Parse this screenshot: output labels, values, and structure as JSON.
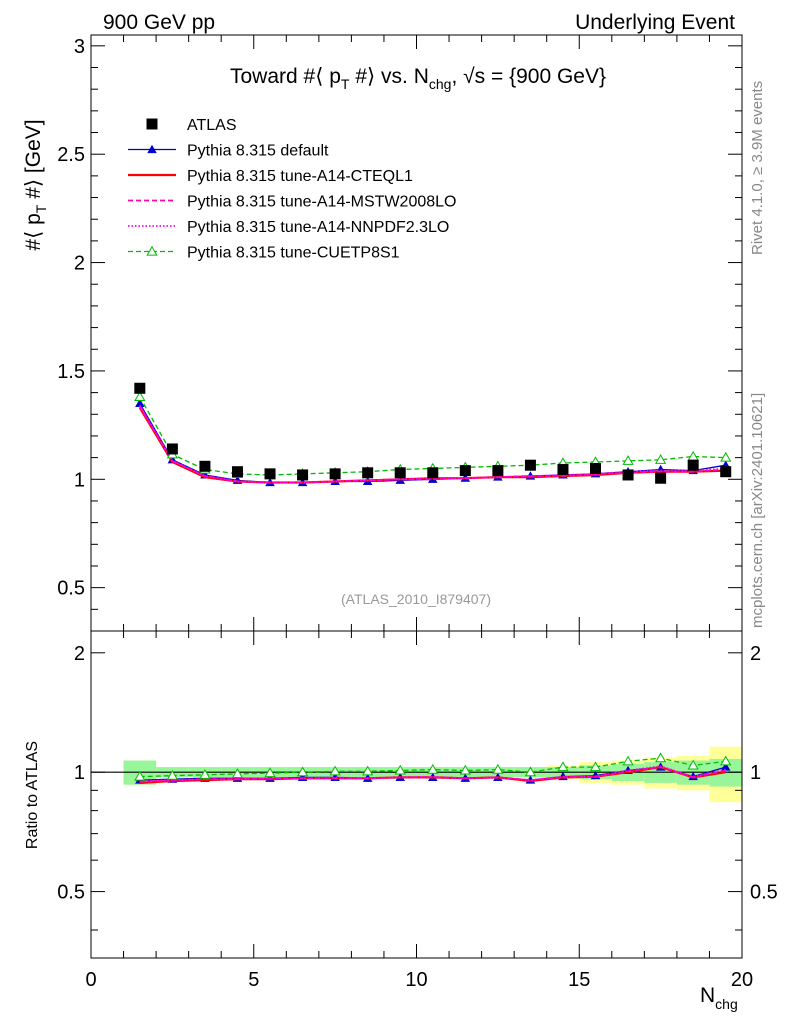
{
  "header": {
    "left_label": "900 GeV pp",
    "right_label": "Underlying Event"
  },
  "side_labels": {
    "rivet": "Rivet 4.1.0, ≥ 3.9M events",
    "mcplots": "mcplots.cern.ch [arXiv:2401.10621]"
  },
  "colors": {
    "data": "#000000",
    "default": "#0000cc",
    "cteql1": "#ff0000",
    "mstw": "#ff00aa",
    "nnpdf": "#ff00ff",
    "cuetp8s1": "#00bb00",
    "band_inner": "#99f599",
    "band_outer": "#ffff99"
  },
  "chart_data": [
    {
      "type": "line",
      "title": "Toward #⟨ p_T #⟩ vs. N_chg, √s = {900 GeV}",
      "xlabel": "N_chg",
      "ylabel": "#⟨ p_T #⟩ [GeV]",
      "watermark": "(ATLAS_2010_I879407)",
      "xlim": [
        0,
        20
      ],
      "ylim": [
        0.3,
        3.05
      ],
      "yticks": [
        0.5,
        1,
        1.5,
        2,
        2.5,
        3
      ],
      "ytick_labels": [
        "0.5",
        "1",
        "1.5",
        "2",
        "2.5",
        "3"
      ],
      "x": [
        1.5,
        2.5,
        3.5,
        4.5,
        5.5,
        6.5,
        7.5,
        8.5,
        9.5,
        10.5,
        11.5,
        12.5,
        13.5,
        14.5,
        15.5,
        16.5,
        17.5,
        18.5,
        19.5
      ],
      "series": [
        {
          "key": "atlas",
          "name": "ATLAS",
          "style": "data",
          "values": [
            1.42,
            1.14,
            1.06,
            1.035,
            1.025,
            1.02,
            1.025,
            1.03,
            1.03,
            1.03,
            1.04,
            1.04,
            1.065,
            1.045,
            1.05,
            1.02,
            1.005,
            1.065,
            1.035
          ]
        },
        {
          "key": "default",
          "name": "Pythia 8.315 default",
          "style": "default",
          "values": [
            1.35,
            1.09,
            1.02,
            0.995,
            0.985,
            0.985,
            0.99,
            0.99,
            0.995,
            1.0,
            1.005,
            1.01,
            1.015,
            1.02,
            1.025,
            1.035,
            1.045,
            1.04,
            1.065
          ]
        },
        {
          "key": "cteql1",
          "name": "Pythia 8.315 tune-A14-CTEQL1",
          "style": "cteql1",
          "values": [
            1.33,
            1.08,
            1.01,
            0.99,
            0.985,
            0.985,
            0.99,
            0.995,
            1.0,
            1.005,
            1.005,
            1.01,
            1.01,
            1.015,
            1.02,
            1.03,
            1.035,
            1.035,
            1.04
          ]
        },
        {
          "key": "mstw",
          "name": "Pythia 8.315 tune-A14-MSTW2008LO",
          "style": "mstw",
          "values": [
            1.335,
            1.085,
            1.015,
            0.99,
            0.985,
            0.985,
            0.99,
            0.995,
            1.0,
            1.0,
            1.005,
            1.01,
            1.015,
            1.015,
            1.025,
            1.03,
            1.035,
            1.035,
            1.045
          ]
        },
        {
          "key": "nnpdf",
          "name": "Pythia 8.315 tune-A14-NNPDF2.3LO",
          "style": "nnpdf",
          "values": [
            1.34,
            1.085,
            1.015,
            0.99,
            0.985,
            0.985,
            0.99,
            0.995,
            1.0,
            1.005,
            1.005,
            1.01,
            1.015,
            1.02,
            1.025,
            1.035,
            1.04,
            1.04,
            1.05
          ]
        },
        {
          "key": "cuetp8s1",
          "name": "Pythia 8.315 tune-CUETP8S1",
          "style": "cuetp8s1",
          "values": [
            1.38,
            1.115,
            1.045,
            1.025,
            1.02,
            1.025,
            1.03,
            1.035,
            1.045,
            1.05,
            1.055,
            1.06,
            1.065,
            1.075,
            1.08,
            1.085,
            1.09,
            1.105,
            1.1
          ]
        }
      ]
    },
    {
      "type": "line",
      "title": "",
      "xlabel": "N_chg",
      "ylabel": "Ratio to ATLAS",
      "xlim": [
        0,
        20
      ],
      "ylim": [
        0.34,
        2.27
      ],
      "xticks": [
        0,
        5,
        10,
        15,
        20
      ],
      "xtick_labels": [
        "0",
        "5",
        "10",
        "15",
        "20"
      ],
      "yticks": [
        0.5,
        1,
        2
      ],
      "ytick_labels": [
        "0.5",
        "1",
        "2"
      ],
      "reference_line": 1,
      "x": [
        1.5,
        2.5,
        3.5,
        4.5,
        5.5,
        6.5,
        7.5,
        8.5,
        9.5,
        10.5,
        11.5,
        12.5,
        13.5,
        14.5,
        15.5,
        16.5,
        17.5,
        18.5,
        19.5
      ],
      "band_bins": [
        [
          1,
          2
        ],
        [
          2,
          3
        ],
        [
          3,
          4
        ],
        [
          4,
          5
        ],
        [
          5,
          6
        ],
        [
          6,
          7
        ],
        [
          7,
          8
        ],
        [
          8,
          9
        ],
        [
          9,
          10
        ],
        [
          10,
          11
        ],
        [
          11,
          12
        ],
        [
          12,
          13
        ],
        [
          13,
          14
        ],
        [
          14,
          15
        ],
        [
          15,
          16
        ],
        [
          16,
          17
        ],
        [
          17,
          18
        ],
        [
          18,
          19
        ],
        [
          19,
          20
        ]
      ],
      "band_inner_halfwidth": [
        0.08,
        0.03,
        0.03,
        0.03,
        0.03,
        0.03,
        0.03,
        0.03,
        0.03,
        0.03,
        0.03,
        0.03,
        0.03,
        0.03,
        0.04,
        0.05,
        0.06,
        0.07,
        0.08
      ],
      "band_outer_halfwidth": [
        0.07,
        0.03,
        0.03,
        0.03,
        0.03,
        0.03,
        0.03,
        0.03,
        0.03,
        0.03,
        0.03,
        0.03,
        0.03,
        0.04,
        0.06,
        0.07,
        0.09,
        0.1,
        0.16
      ],
      "series": [
        {
          "key": "default",
          "name": "Pythia 8.315 default",
          "style": "default",
          "values": [
            0.955,
            0.96,
            0.965,
            0.965,
            0.965,
            0.97,
            0.97,
            0.965,
            0.97,
            0.97,
            0.965,
            0.97,
            0.955,
            0.975,
            0.98,
            1.01,
            1.03,
            0.975,
            1.03
          ]
        },
        {
          "key": "cteql1",
          "name": "Pythia 8.315 tune-A14-CTEQL1",
          "style": "cteql1",
          "values": [
            0.94,
            0.95,
            0.955,
            0.96,
            0.96,
            0.965,
            0.965,
            0.965,
            0.97,
            0.97,
            0.965,
            0.97,
            0.95,
            0.97,
            0.975,
            1.0,
            1.03,
            0.97,
            1.0
          ]
        },
        {
          "key": "mstw",
          "name": "Pythia 8.315 tune-A14-MSTW2008LO",
          "style": "mstw",
          "values": [
            0.945,
            0.955,
            0.96,
            0.96,
            0.965,
            0.965,
            0.965,
            0.965,
            0.97,
            0.97,
            0.965,
            0.97,
            0.955,
            0.97,
            0.975,
            1.005,
            1.03,
            0.97,
            1.01
          ]
        },
        {
          "key": "nnpdf",
          "name": "Pythia 8.315 tune-A14-NNPDF2.3LO",
          "style": "nnpdf",
          "values": [
            0.95,
            0.955,
            0.96,
            0.96,
            0.965,
            0.965,
            0.97,
            0.965,
            0.97,
            0.975,
            0.965,
            0.97,
            0.955,
            0.975,
            0.975,
            1.01,
            1.035,
            0.975,
            1.015
          ]
        },
        {
          "key": "cuetp8s1",
          "name": "Pythia 8.315 tune-CUETP8S1",
          "style": "cuetp8s1",
          "values": [
            0.975,
            0.98,
            0.985,
            0.99,
            0.995,
            1.0,
            1.005,
            1.005,
            1.01,
            1.015,
            1.01,
            1.015,
            1.0,
            1.03,
            1.03,
            1.065,
            1.085,
            1.04,
            1.065
          ]
        }
      ]
    }
  ]
}
